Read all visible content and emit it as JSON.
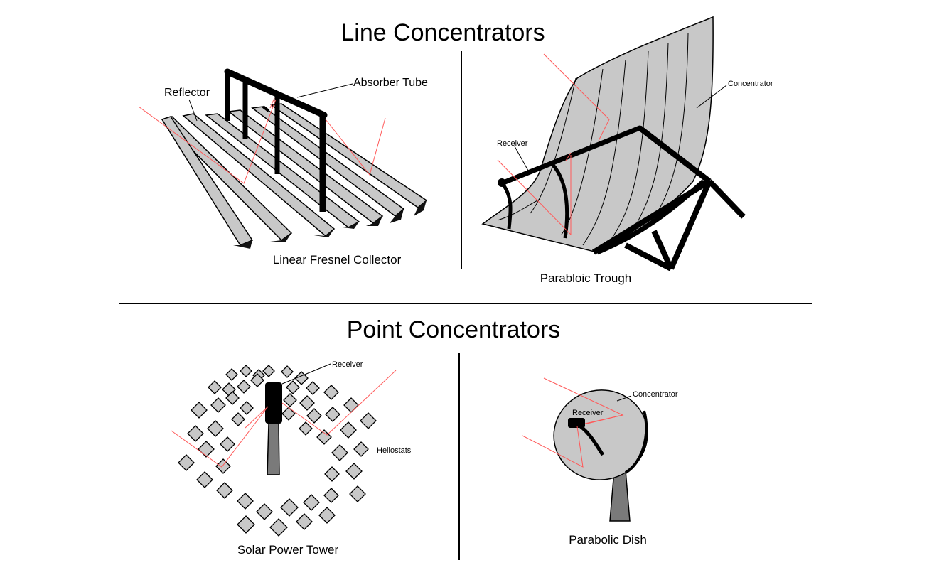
{
  "sections": {
    "line": {
      "title": "Line Concentrators"
    },
    "point": {
      "title": "Point Concentrators"
    }
  },
  "fresnel": {
    "caption": "Linear Fresnel Collector",
    "reflector_label": "Reflector",
    "absorber_label": "Absorber Tube"
  },
  "trough": {
    "caption": "Parabloic Trough",
    "receiver_label": "Receiver",
    "concentrator_label": "Concentrator"
  },
  "tower": {
    "caption": "Solar Power Tower",
    "receiver_label": "Receiver",
    "heliostats_label": "Heliostats"
  },
  "dish": {
    "caption": "Parabolic Dish",
    "receiver_label": "Receiver",
    "concentrator_label": "Concentrator"
  },
  "colors": {
    "panel_fill": "#c8c8c8",
    "ray": "#ff5a5a",
    "outline": "#000000"
  }
}
